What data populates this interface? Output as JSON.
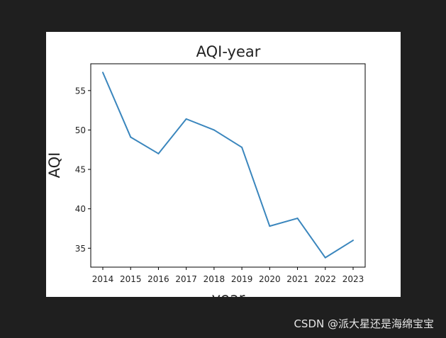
{
  "chart_data": {
    "type": "line",
    "title": "AQI-year",
    "xlabel": "year",
    "ylabel": "AQI",
    "x": [
      "2014",
      "2015",
      "2016",
      "2017",
      "2018",
      "2019",
      "2020",
      "2021",
      "2022",
      "2023"
    ],
    "series": [
      {
        "values": [
          57.3,
          49.1,
          47.0,
          51.4,
          50.0,
          47.8,
          37.8,
          38.8,
          33.8,
          36.0
        ],
        "color": "#3a86bd"
      }
    ],
    "ylim": [
      32.6,
      58.4
    ],
    "yticks": [
      35,
      40,
      45,
      50,
      55
    ],
    "grid": false
  },
  "watermark": "CSDN @派大星还是海绵宝宝"
}
